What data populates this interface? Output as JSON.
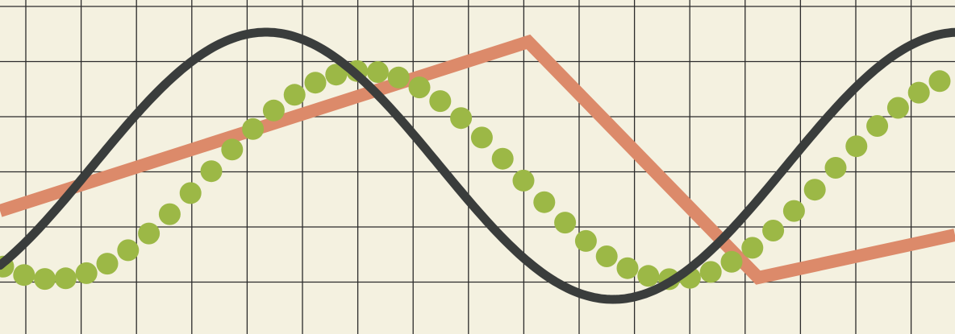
{
  "colors": {
    "paper": "#f4f1e0",
    "grid": "#2b2b2b",
    "salmon": "#dc8a6a",
    "dark": "#3a3d3c",
    "green": "#9cb846"
  },
  "elements": {
    "grid": "graph-paper-grid",
    "salmon_line": "salmon-zigzag-line",
    "dark_wave": "dark-sine-wave",
    "green_dots": "green-dotted-wave"
  }
}
